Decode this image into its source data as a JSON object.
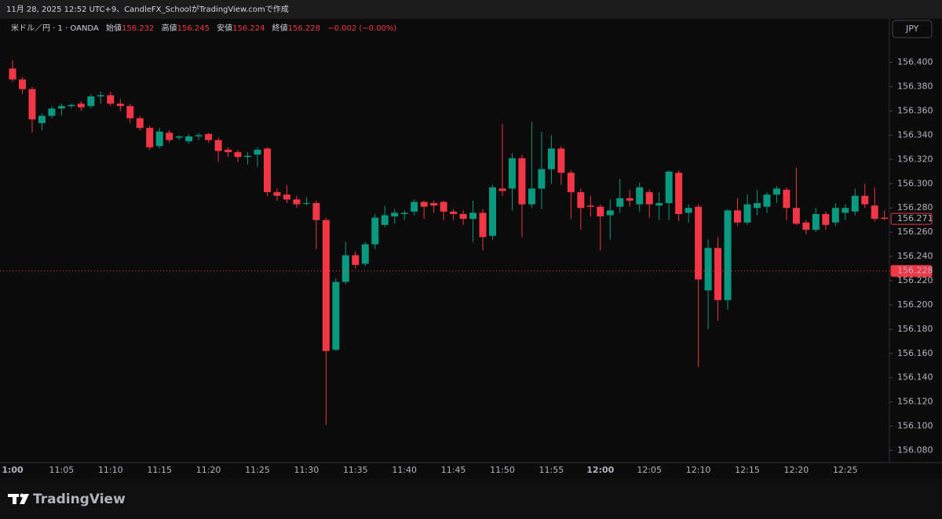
{
  "caption": "11月 28, 2025 12:52 UTC+9、CandleFX_SchoolがTradingView.comで作成",
  "brand": "TradingView",
  "chart_data": {
    "type": "candlestick",
    "symbol": "米ドル／円 · 1 · OANDA",
    "ohlc_header": [
      {
        "label": "始値",
        "value": 156.232
      },
      {
        "label": "高値",
        "value": 156.245
      },
      {
        "label": "安値",
        "value": 156.224
      },
      {
        "label": "終値",
        "value": 156.228
      }
    ],
    "change": "−0.002 (−0.00%)",
    "currency": "JPY",
    "up_color": "#089981",
    "down_color": "#f23645",
    "categories": [
      "1:00",
      null,
      null,
      null,
      null,
      "11:05",
      null,
      null,
      null,
      null,
      "11:10",
      null,
      null,
      null,
      null,
      "11:15",
      null,
      null,
      null,
      null,
      "11:20",
      null,
      null,
      null,
      null,
      "11:25",
      null,
      null,
      null,
      null,
      "11:30",
      null,
      null,
      null,
      null,
      "11:35",
      null,
      null,
      null,
      null,
      "11:40",
      null,
      null,
      null,
      null,
      "11:45",
      null,
      null,
      null,
      null,
      "11:50",
      null,
      null,
      null,
      null,
      "11:55",
      null,
      null,
      null,
      null,
      "12:00",
      null,
      null,
      null,
      null,
      "12:05",
      null,
      null,
      null,
      null,
      "12:10",
      null,
      null,
      null,
      null,
      "12:15",
      null,
      null,
      null,
      null,
      "12:20",
      null,
      null,
      null,
      null,
      "12:25",
      null,
      null,
      null,
      null
    ],
    "open": [
      156.395,
      156.386,
      156.378,
      156.35,
      156.356,
      156.362,
      156.364,
      156.366,
      156.364,
      156.372,
      156.373,
      156.366,
      156.364,
      156.354,
      156.346,
      156.331,
      156.342,
      156.338,
      156.335,
      156.339,
      156.341,
      156.336,
      156.328,
      156.326,
      156.322,
      156.324,
      156.329,
      156.293,
      156.291,
      156.287,
      156.284,
      156.284,
      156.27,
      156.163,
      156.219,
      156.241,
      156.234,
      156.25,
      156.266,
      156.273,
      156.275,
      156.277,
      156.285,
      156.284,
      156.285,
      156.277,
      156.275,
      156.271,
      156.276,
      156.257,
      156.296,
      156.296,
      156.321,
      156.283,
      156.296,
      156.312,
      156.329,
      156.309,
      156.293,
      156.282,
      156.281,
      156.274,
      156.281,
      156.288,
      156.283,
      156.293,
      156.282,
      156.284,
      156.309,
      156.276,
      156.281,
      156.212,
      156.247,
      156.204,
      156.278,
      156.268,
      156.28,
      156.281,
      156.291,
      156.295,
      156.28,
      156.268,
      156.262,
      156.275,
      156.268,
      156.276,
      156.277,
      156.29,
      156.282,
      156.272
    ],
    "high": [
      156.402,
      156.388,
      156.38,
      156.358,
      156.364,
      156.366,
      156.366,
      156.368,
      156.374,
      156.376,
      156.376,
      156.37,
      156.366,
      156.356,
      156.348,
      156.346,
      156.344,
      156.34,
      156.341,
      156.342,
      156.342,
      156.338,
      156.33,
      156.328,
      156.326,
      156.33,
      156.33,
      156.296,
      156.299,
      156.29,
      156.289,
      156.286,
      156.272,
      156.222,
      156.252,
      156.244,
      156.252,
      156.275,
      156.282,
      156.279,
      156.278,
      156.287,
      156.286,
      156.286,
      156.286,
      156.279,
      156.278,
      156.286,
      156.279,
      156.299,
      156.349,
      156.325,
      156.324,
      156.351,
      156.343,
      156.34,
      156.331,
      156.311,
      156.296,
      156.29,
      156.283,
      156.287,
      156.304,
      156.295,
      156.301,
      156.295,
      156.293,
      156.311,
      156.311,
      156.283,
      156.283,
      156.254,
      156.256,
      156.279,
      156.288,
      156.291,
      156.295,
      156.293,
      156.298,
      156.297,
      156.313,
      156.27,
      156.28,
      156.277,
      156.284,
      156.283,
      156.296,
      156.3,
      156.297,
      156.278
    ],
    "low": [
      156.384,
      156.374,
      156.342,
      156.344,
      156.354,
      156.356,
      156.362,
      156.36,
      156.362,
      156.366,
      156.364,
      156.36,
      156.35,
      156.344,
      156.328,
      156.329,
      156.334,
      156.336,
      156.333,
      156.336,
      156.334,
      156.318,
      156.322,
      156.318,
      156.316,
      156.314,
      156.29,
      156.286,
      156.284,
      156.28,
      156.282,
      156.246,
      156.101,
      156.162,
      156.217,
      156.23,
      156.232,
      156.246,
      156.264,
      156.267,
      156.27,
      156.274,
      156.271,
      156.276,
      156.27,
      156.27,
      156.266,
      156.252,
      156.245,
      156.254,
      156.29,
      156.278,
      156.256,
      156.28,
      156.279,
      156.3,
      156.299,
      156.271,
      156.262,
      156.273,
      156.245,
      156.254,
      156.276,
      156.281,
      156.277,
      156.272,
      156.27,
      156.27,
      156.269,
      156.268,
      156.149,
      156.18,
      156.187,
      156.196,
      156.265,
      156.266,
      156.274,
      156.276,
      156.284,
      156.27,
      156.266,
      156.258,
      156.26,
      156.262,
      156.265,
      156.27,
      156.274,
      156.28,
      156.269,
      156.27
    ],
    "close": [
      156.386,
      156.378,
      156.353,
      156.356,
      156.362,
      156.364,
      156.365,
      156.363,
      156.372,
      156.373,
      156.366,
      156.364,
      156.354,
      156.346,
      156.33,
      156.343,
      156.336,
      156.339,
      156.339,
      156.34,
      156.336,
      156.327,
      156.326,
      156.322,
      156.323,
      156.328,
      156.293,
      156.29,
      156.287,
      156.283,
      156.284,
      156.27,
      156.162,
      156.219,
      156.241,
      156.233,
      156.25,
      156.272,
      156.274,
      156.276,
      156.276,
      156.285,
      156.281,
      156.282,
      156.277,
      156.275,
      156.271,
      156.276,
      156.256,
      156.297,
      156.294,
      156.321,
      156.283,
      156.296,
      156.312,
      156.329,
      156.309,
      156.293,
      156.28,
      156.281,
      156.273,
      156.278,
      156.288,
      156.286,
      156.297,
      156.283,
      156.284,
      156.31,
      156.275,
      156.28,
      156.221,
      156.247,
      156.204,
      156.278,
      156.268,
      156.283,
      156.284,
      156.291,
      156.296,
      156.28,
      156.267,
      156.262,
      156.275,
      156.266,
      156.28,
      156.28,
      156.29,
      156.283,
      156.271,
      156.271
    ],
    "ylim": [
      156.07,
      156.436
    ],
    "yticks": [
      {
        "value": 156.08,
        "label": "156.080"
      },
      {
        "value": 156.1,
        "label": "156.100"
      },
      {
        "value": 156.12,
        "label": "156.120"
      },
      {
        "value": 156.14,
        "label": "156.140"
      },
      {
        "value": 156.16,
        "label": "156.160"
      },
      {
        "value": 156.18,
        "label": "156.180"
      },
      {
        "value": 156.2,
        "label": "156.200"
      },
      {
        "value": 156.22,
        "label": "156.220"
      },
      {
        "value": 156.24,
        "label": "156.240"
      },
      {
        "value": 156.26,
        "label": "156.260"
      },
      {
        "value": 156.28,
        "label": "156.280"
      },
      {
        "value": 156.3,
        "label": "156.300"
      },
      {
        "value": 156.32,
        "label": "156.320"
      },
      {
        "value": 156.34,
        "label": "156.340"
      },
      {
        "value": 156.36,
        "label": "156.360"
      },
      {
        "value": 156.38,
        "label": "156.380"
      },
      {
        "value": 156.4,
        "label": "156.400"
      }
    ],
    "grid": false,
    "price_markers": [
      156.271,
      156.228
    ]
  }
}
